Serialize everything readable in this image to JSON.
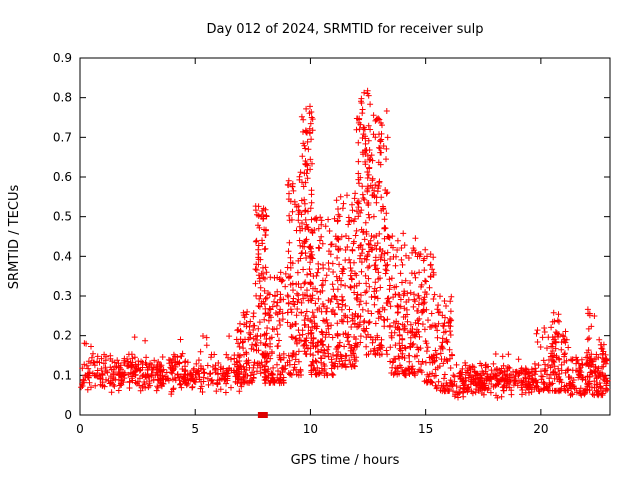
{
  "chart_data": {
    "type": "scatter",
    "title": "Day 012 of 2024, SRMTID for receiver sulp",
    "xlabel": "GPS time / hours",
    "ylabel": "SRMTID / TECUs",
    "xlim": [
      0,
      23
    ],
    "ylim": [
      0,
      0.9
    ],
    "x_ticks": [
      {
        "v": 0,
        "label": "0"
      },
      {
        "v": 5,
        "label": "5"
      },
      {
        "v": 10,
        "label": "10"
      },
      {
        "v": 15,
        "label": "15"
      },
      {
        "v": 20,
        "label": "20"
      }
    ],
    "y_ticks": [
      {
        "v": 0.0,
        "label": "0"
      },
      {
        "v": 0.1,
        "label": "0.1"
      },
      {
        "v": 0.2,
        "label": "0.2"
      },
      {
        "v": 0.3,
        "label": "0.3"
      },
      {
        "v": 0.4,
        "label": "0.4"
      },
      {
        "v": 0.5,
        "label": "0.5"
      },
      {
        "v": 0.6,
        "label": "0.6"
      },
      {
        "v": 0.7,
        "label": "0.7"
      },
      {
        "v": 0.8,
        "label": "0.8"
      },
      {
        "v": 0.9,
        "label": "0.9"
      }
    ],
    "grid": false,
    "legend": "none",
    "marker": "plus",
    "marker_color": "#ff0000",
    "border_color": "#000000",
    "notable_peaks": [
      {
        "x": 12.3,
        "y": 0.82
      },
      {
        "x": 9.9,
        "y": 0.78
      },
      {
        "x": 13.0,
        "y": 0.75
      },
      {
        "x": 7.8,
        "y": 0.52
      }
    ],
    "series": [
      {
        "name": "srmtid",
        "style": "plus",
        "seed": 20240112,
        "clusters": [
          {
            "x0": 0.0,
            "x1": 7.0,
            "n": 420,
            "y0": 0.05,
            "y1": 0.16,
            "k": 0
          },
          {
            "x0": 0.0,
            "x1": 7.0,
            "n": 30,
            "y0": 0.11,
            "y1": 0.2,
            "k": 1.5
          },
          {
            "x0": 6.8,
            "x1": 7.6,
            "n": 90,
            "y0": 0.08,
            "y1": 0.26,
            "k": 1.6
          },
          {
            "x0": 7.6,
            "x1": 8.1,
            "n": 100,
            "y0": 0.1,
            "y1": 0.53,
            "k": 1.2
          },
          {
            "x0": 8.0,
            "x1": 9.0,
            "n": 120,
            "y0": 0.08,
            "y1": 0.36,
            "k": 1.8
          },
          {
            "x0": 9.0,
            "x1": 9.6,
            "n": 110,
            "y0": 0.1,
            "y1": 0.62,
            "k": 1.5
          },
          {
            "x0": 9.6,
            "x1": 10.1,
            "n": 130,
            "y0": 0.15,
            "y1": 0.78,
            "k": 1.1
          },
          {
            "x0": 10.0,
            "x1": 11.0,
            "n": 160,
            "y0": 0.1,
            "y1": 0.5,
            "k": 1.6
          },
          {
            "x0": 11.0,
            "x1": 12.0,
            "n": 160,
            "y0": 0.12,
            "y1": 0.56,
            "k": 1.5
          },
          {
            "x0": 12.0,
            "x1": 12.6,
            "n": 140,
            "y0": 0.15,
            "y1": 0.82,
            "k": 1.1
          },
          {
            "x0": 12.6,
            "x1": 13.4,
            "n": 150,
            "y0": 0.15,
            "y1": 0.77,
            "k": 1.3
          },
          {
            "x0": 13.4,
            "x1": 14.6,
            "n": 160,
            "y0": 0.1,
            "y1": 0.46,
            "k": 1.6
          },
          {
            "x0": 14.6,
            "x1": 15.4,
            "n": 100,
            "y0": 0.08,
            "y1": 0.42,
            "k": 1.6
          },
          {
            "x0": 15.4,
            "x1": 16.2,
            "n": 90,
            "y0": 0.06,
            "y1": 0.3,
            "k": 1.8
          },
          {
            "x0": 16.2,
            "x1": 19.8,
            "n": 280,
            "y0": 0.04,
            "y1": 0.13,
            "k": 0
          },
          {
            "x0": 16.2,
            "x1": 19.8,
            "n": 20,
            "y0": 0.1,
            "y1": 0.17,
            "k": 1.5
          },
          {
            "x0": 19.8,
            "x1": 21.2,
            "n": 110,
            "y0": 0.06,
            "y1": 0.22,
            "k": 2.0
          },
          {
            "x0": 20.4,
            "x1": 20.8,
            "n": 25,
            "y0": 0.1,
            "y1": 0.26,
            "k": 1.2
          },
          {
            "x0": 21.2,
            "x1": 22.4,
            "n": 100,
            "y0": 0.05,
            "y1": 0.15,
            "k": 1.6
          },
          {
            "x0": 22.0,
            "x1": 22.4,
            "n": 20,
            "y0": 0.12,
            "y1": 0.28,
            "k": 1.2
          },
          {
            "x0": 22.4,
            "x1": 22.9,
            "n": 60,
            "y0": 0.05,
            "y1": 0.19,
            "k": 1.5
          }
        ]
      }
    ],
    "baseline_markers": {
      "style": "filled-square",
      "color": "#dd0000",
      "points": [
        [
          7.85,
          0
        ],
        [
          8.02,
          0
        ]
      ]
    }
  }
}
